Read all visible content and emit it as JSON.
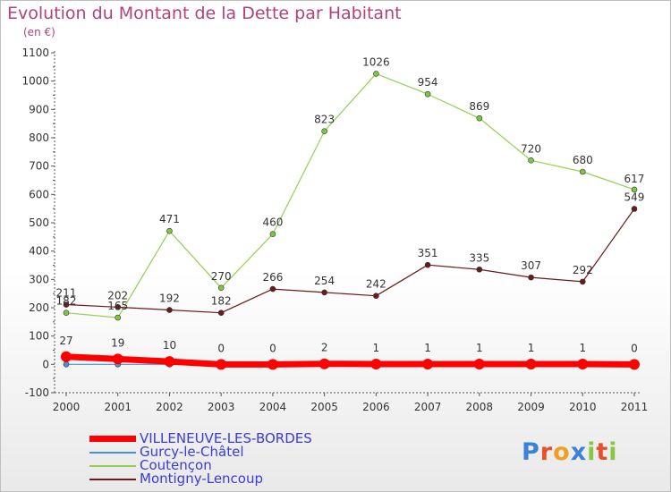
{
  "header": {
    "title": "Evolution du Montant de la Dette par Habitant",
    "unit": "(en €)"
  },
  "logo": {
    "text": "Proxiti"
  },
  "chart_data": {
    "type": "line",
    "title": "Evolution du Montant de la Dette par Habitant",
    "ylabel": "(en €)",
    "ylim": [
      -100,
      1100
    ],
    "yticks": [
      -100,
      0,
      100,
      200,
      300,
      400,
      500,
      600,
      700,
      800,
      900,
      1000,
      1100
    ],
    "categories": [
      "2000",
      "2001",
      "2002",
      "2003",
      "2004",
      "2005",
      "2006",
      "2007",
      "2008",
      "2009",
      "2010",
      "2011"
    ],
    "grid": false,
    "legend_position": "bottom-left",
    "series": [
      {
        "name": "VILLENEUVE-LES-BORDES",
        "color": "#ff0000",
        "values": [
          27,
          19,
          10,
          0,
          0,
          2,
          1,
          1,
          1,
          1,
          1,
          0
        ],
        "labels": [
          "27",
          "19",
          "10",
          "0",
          "0",
          "2",
          "1",
          "1",
          "1",
          "1",
          "1",
          "0"
        ]
      },
      {
        "name": "Gurcy-le-Châtel",
        "color": "#4a90d9",
        "values": [
          0,
          0,
          0,
          0,
          0,
          0,
          0,
          0,
          0,
          0,
          0,
          0
        ],
        "labels": []
      },
      {
        "name": "Coutençon",
        "color": "#92d050",
        "values": [
          182,
          165,
          471,
          270,
          460,
          823,
          1026,
          954,
          869,
          720,
          680,
          617
        ],
        "labels": [
          "182",
          "165",
          "471",
          "270",
          "460",
          "823",
          "1026",
          "954",
          "869",
          "720",
          "680",
          "617"
        ]
      },
      {
        "name": "Montigny-Lencoup",
        "color": "#6b1a1a",
        "values": [
          211,
          202,
          192,
          182,
          266,
          254,
          242,
          351,
          335,
          307,
          292,
          549
        ],
        "labels": [
          "211",
          "202",
          "192",
          "182",
          "266",
          "254",
          "242",
          "351",
          "335",
          "307",
          "292",
          "549"
        ]
      }
    ]
  }
}
